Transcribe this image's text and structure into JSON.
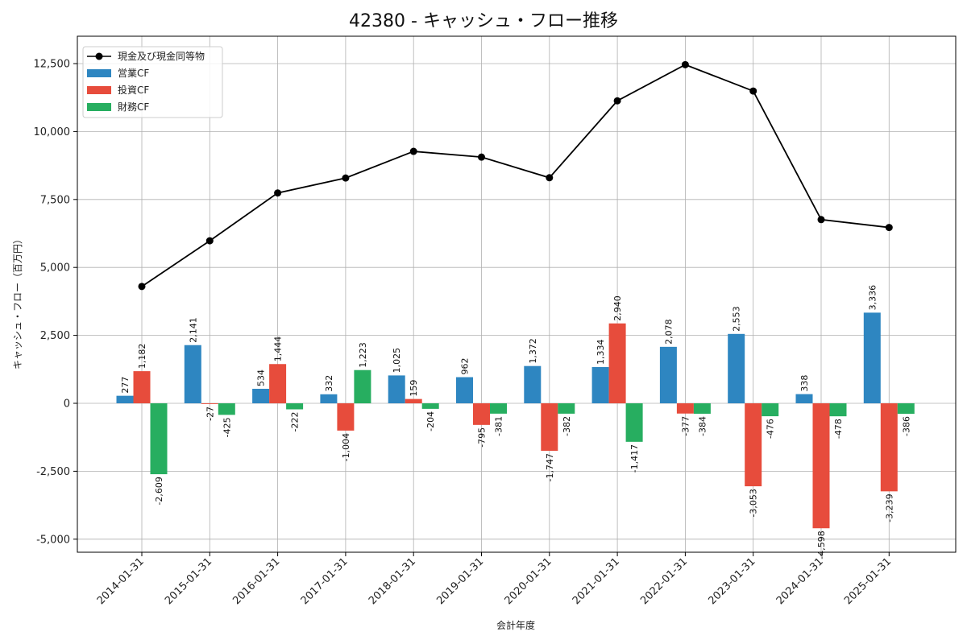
{
  "chart_data": {
    "type": "bar",
    "title": "42380 - キャッシュ・フロー推移",
    "xlabel": "会計年度",
    "ylabel": "キャッシュ・フロー（百万円）",
    "ylim": [
      -5500,
      13200
    ],
    "yticks": [
      -5000,
      -2500,
      0,
      2500,
      5000,
      7500,
      10000,
      12500
    ],
    "ytick_labels": [
      "-5,000",
      "-2,500",
      "0",
      "2,500",
      "5,000",
      "7,500",
      "10,000",
      "12,500"
    ],
    "grid": true,
    "legend_position": "top-left",
    "categories": [
      "2014-01-31",
      "2015-01-31",
      "2016-01-31",
      "2017-01-31",
      "2018-01-31",
      "2019-01-31",
      "2020-01-31",
      "2021-01-31",
      "2022-01-31",
      "2023-01-31",
      "2024-01-31",
      "2025-01-31"
    ],
    "line": {
      "name": "現金及び現金同等物",
      "color": "#000000",
      "values": [
        4300,
        5980,
        7740,
        8290,
        9270,
        9060,
        8300,
        11130,
        12460,
        11490,
        6760,
        6470
      ]
    },
    "series": [
      {
        "name": "営業CF",
        "color": "#2e86c1",
        "values": [
          277,
          2141,
          534,
          332,
          1025,
          962,
          1372,
          1334,
          2078,
          2553,
          338,
          3336
        ],
        "labels": [
          "277",
          "2,141",
          "534",
          "332",
          "1,025",
          "962",
          "1,372",
          "1,334",
          "2,078",
          "2,553",
          "338",
          "3,336"
        ]
      },
      {
        "name": "投資CF",
        "color": "#e74c3c",
        "values": [
          1182,
          -27,
          1444,
          -1004,
          159,
          -795,
          -1747,
          2940,
          -377,
          -3053,
          -4598,
          -3239
        ],
        "labels": [
          "1,182",
          "-27",
          "1,444",
          "-1,004",
          "159",
          "-795",
          "-1,747",
          "2,940",
          "-377",
          "-3,053",
          "-4,598",
          "-3,239"
        ]
      },
      {
        "name": "財務CF",
        "color": "#27ae60",
        "values": [
          -2609,
          -425,
          -222,
          1223,
          -204,
          -381,
          -382,
          -1417,
          -384,
          -476,
          -478,
          -386
        ],
        "labels": [
          "-2,609",
          "-425",
          "-222",
          "1,223",
          "-204",
          "-381",
          "-382",
          "-1,417",
          "-384",
          "-476",
          "-478",
          "-386"
        ]
      }
    ]
  }
}
